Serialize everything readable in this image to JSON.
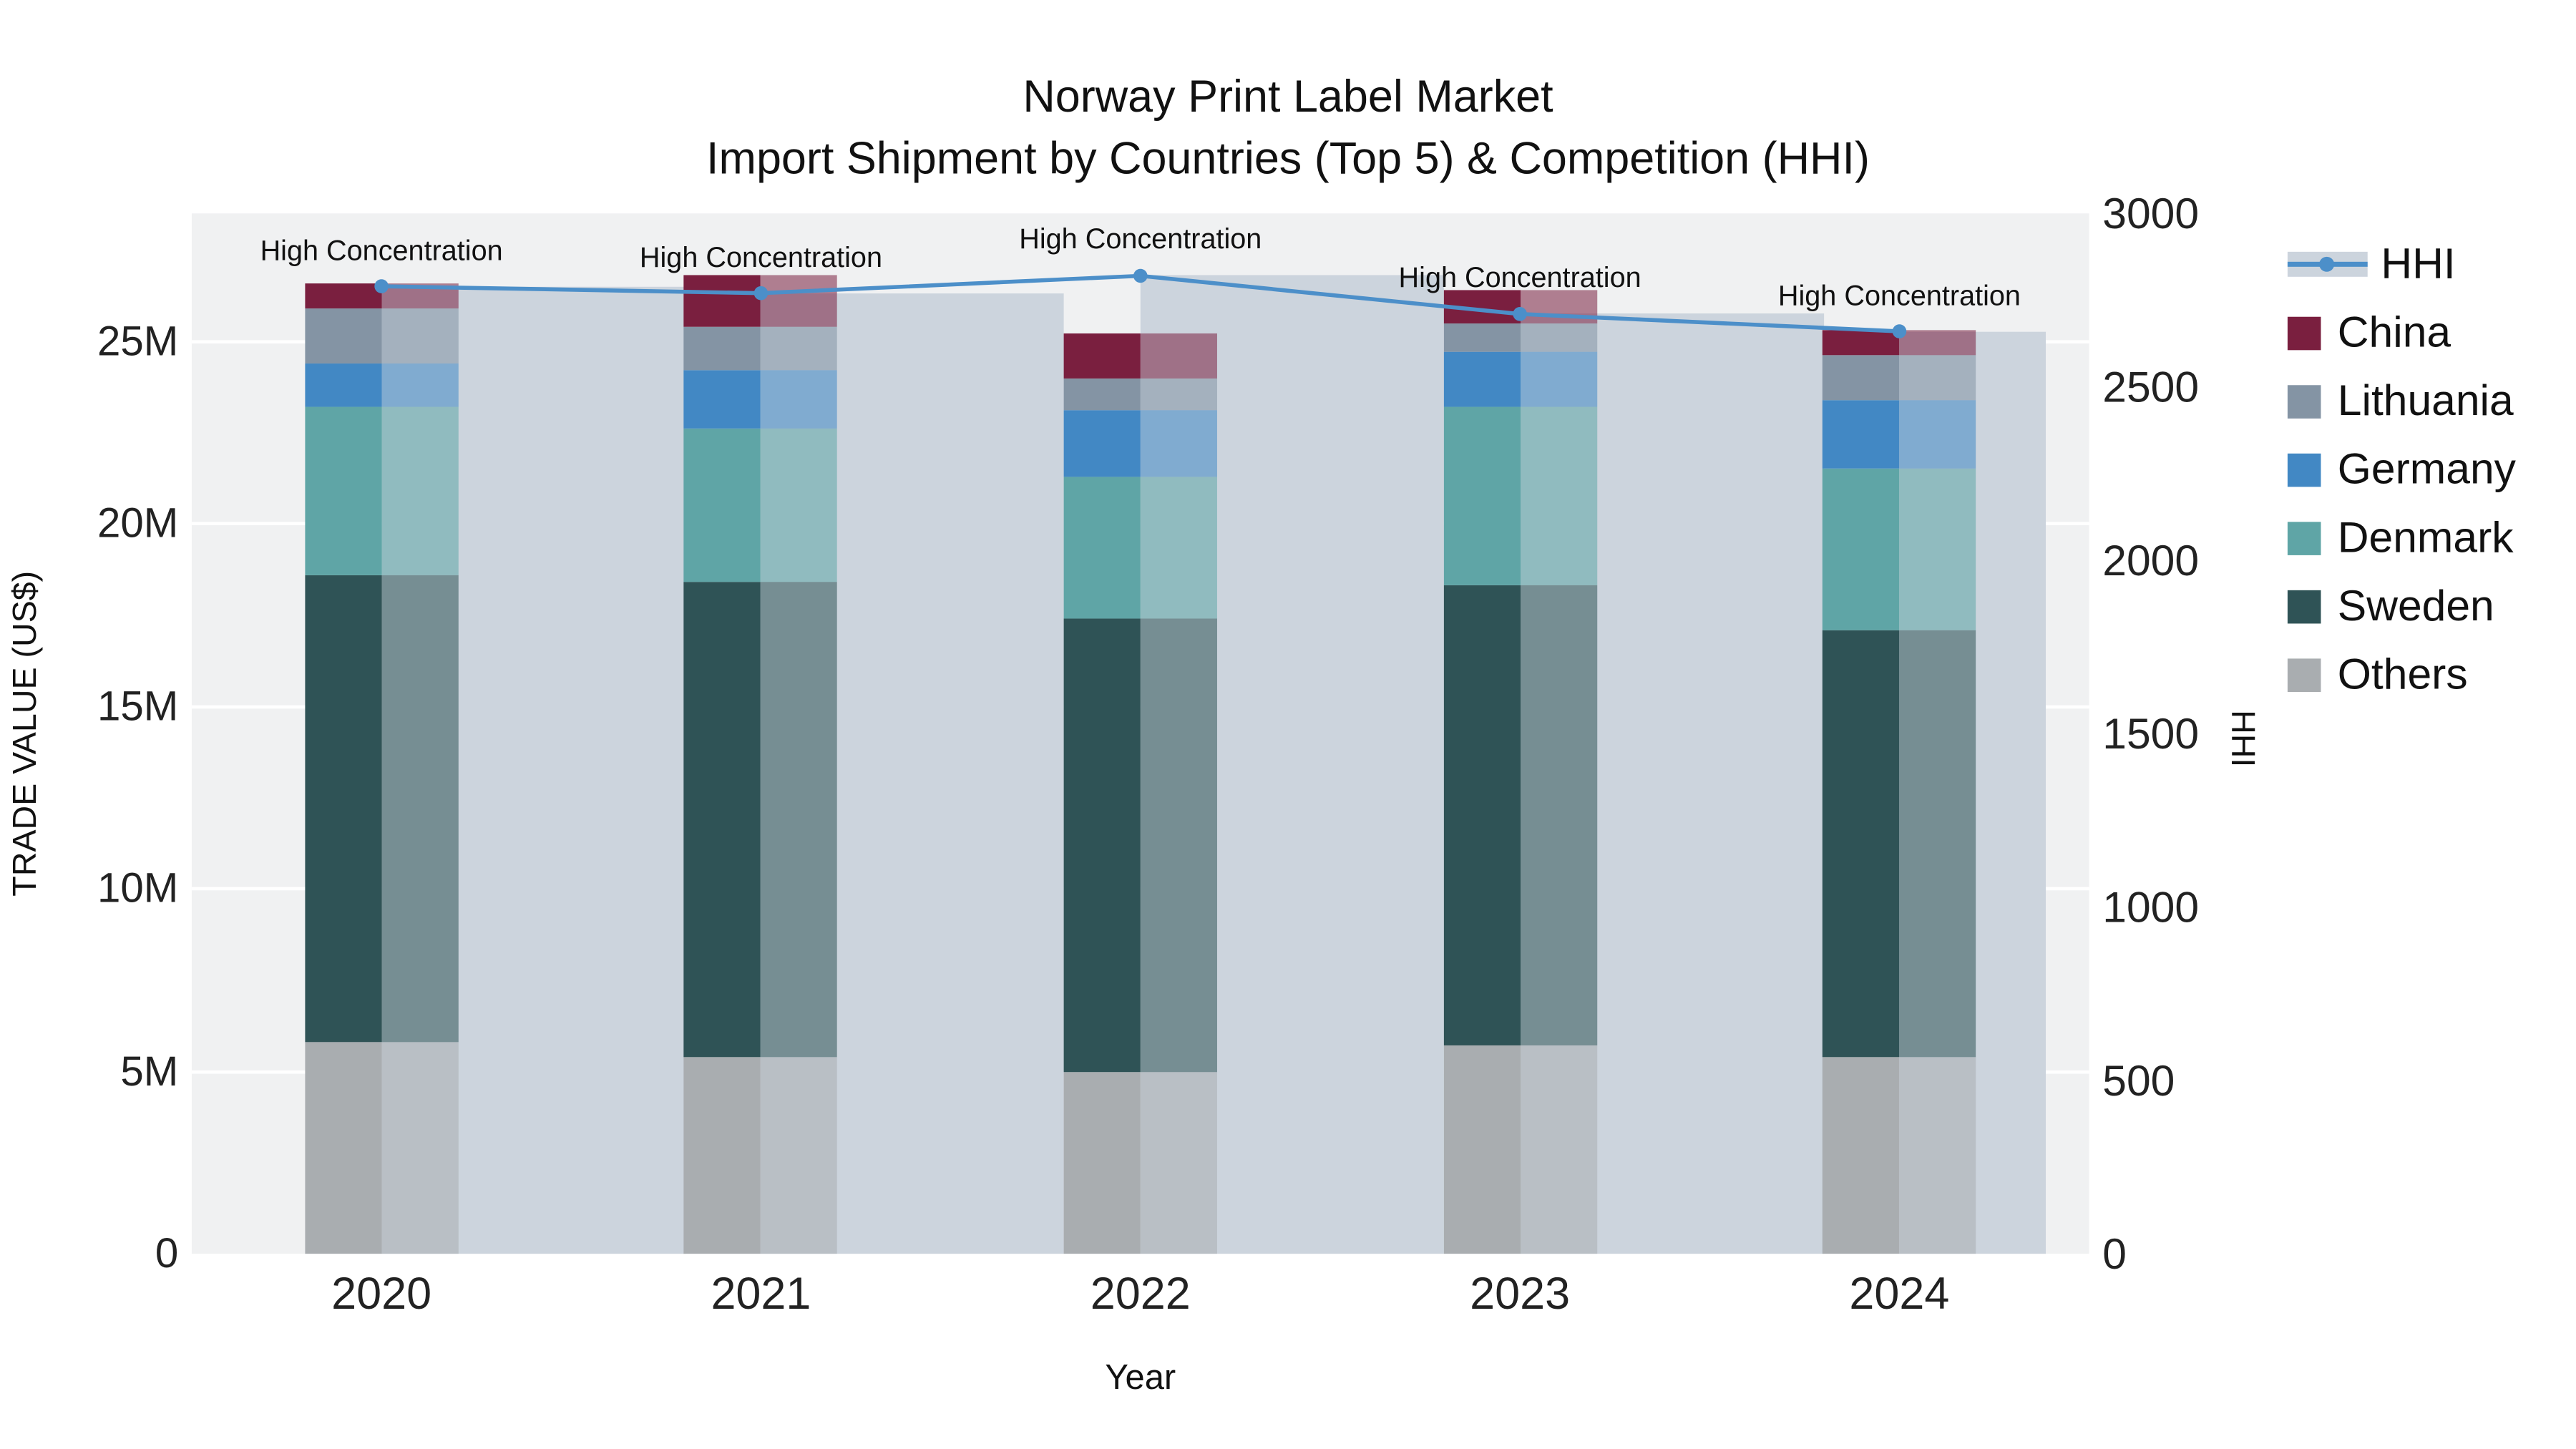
{
  "title": {
    "line1": "Norway Print Label Market",
    "line2": "Import Shipment by Countries (Top 5) & Competition (HHI)"
  },
  "axes": {
    "x": {
      "title": "Year"
    },
    "y_left": {
      "title": "TRADE VALUE (US$)",
      "tick_labels": [
        "0",
        "5M",
        "10M",
        "15M",
        "20M",
        "25M"
      ],
      "tick_values": [
        0,
        5000000,
        10000000,
        15000000,
        20000000,
        25000000
      ],
      "max": 28500000
    },
    "y_right": {
      "title": "HHI",
      "tick_labels": [
        "0",
        "500",
        "1000",
        "1500",
        "2000",
        "2500",
        "3000"
      ],
      "tick_values": [
        0,
        500,
        1000,
        1500,
        2000,
        2500,
        3000
      ],
      "max": 3000
    }
  },
  "legend": {
    "order": [
      "HHI",
      "China",
      "Lithuania",
      "Germany",
      "Denmark",
      "Sweden",
      "Others"
    ]
  },
  "chart_data": {
    "type": "bar+line",
    "title": "Norway Print Label Market — Import Shipment by Countries (Top 5) & Competition (HHI)",
    "categories": [
      "2020",
      "2021",
      "2022",
      "2023",
      "2024"
    ],
    "stack_order": [
      "Others",
      "Sweden",
      "Denmark",
      "Germany",
      "Lithuania",
      "China"
    ],
    "series": [
      {
        "name": "China",
        "color": "#7a1f3f",
        "values": [
          700000,
          1400000,
          1200000,
          900000,
          700000
        ]
      },
      {
        "name": "Lithuania",
        "color": "#8494a4",
        "values": [
          1500000,
          1200000,
          900000,
          800000,
          1200000
        ]
      },
      {
        "name": "Germany",
        "color": "#4288c4",
        "values": [
          1200000,
          1600000,
          1800000,
          1500000,
          1900000
        ]
      },
      {
        "name": "Denmark",
        "color": "#5fa5a6",
        "values": [
          4600000,
          4200000,
          3900000,
          4900000,
          4400000
        ]
      },
      {
        "name": "Sweden",
        "color": "#2f5356",
        "values": [
          12800000,
          13000000,
          12400000,
          12600000,
          11700000
        ]
      },
      {
        "name": "Others",
        "color": "#a9adb0",
        "values": [
          5800000,
          5400000,
          5000000,
          5700000,
          5400000
        ]
      }
    ],
    "hhi": {
      "name": "HHI",
      "line_color": "#4c8fc9",
      "band_color": "#ccd4dd",
      "values": [
        2790,
        2770,
        2820,
        2710,
        2660
      ]
    },
    "annotations": [
      "High Concentration",
      "High Concentration",
      "High Concentration",
      "High Concentration",
      "High Concentration"
    ],
    "ylim_left": [
      0,
      28500000
    ],
    "ylim_right": [
      0,
      3000
    ],
    "grid": true,
    "legend_position": "right"
  }
}
